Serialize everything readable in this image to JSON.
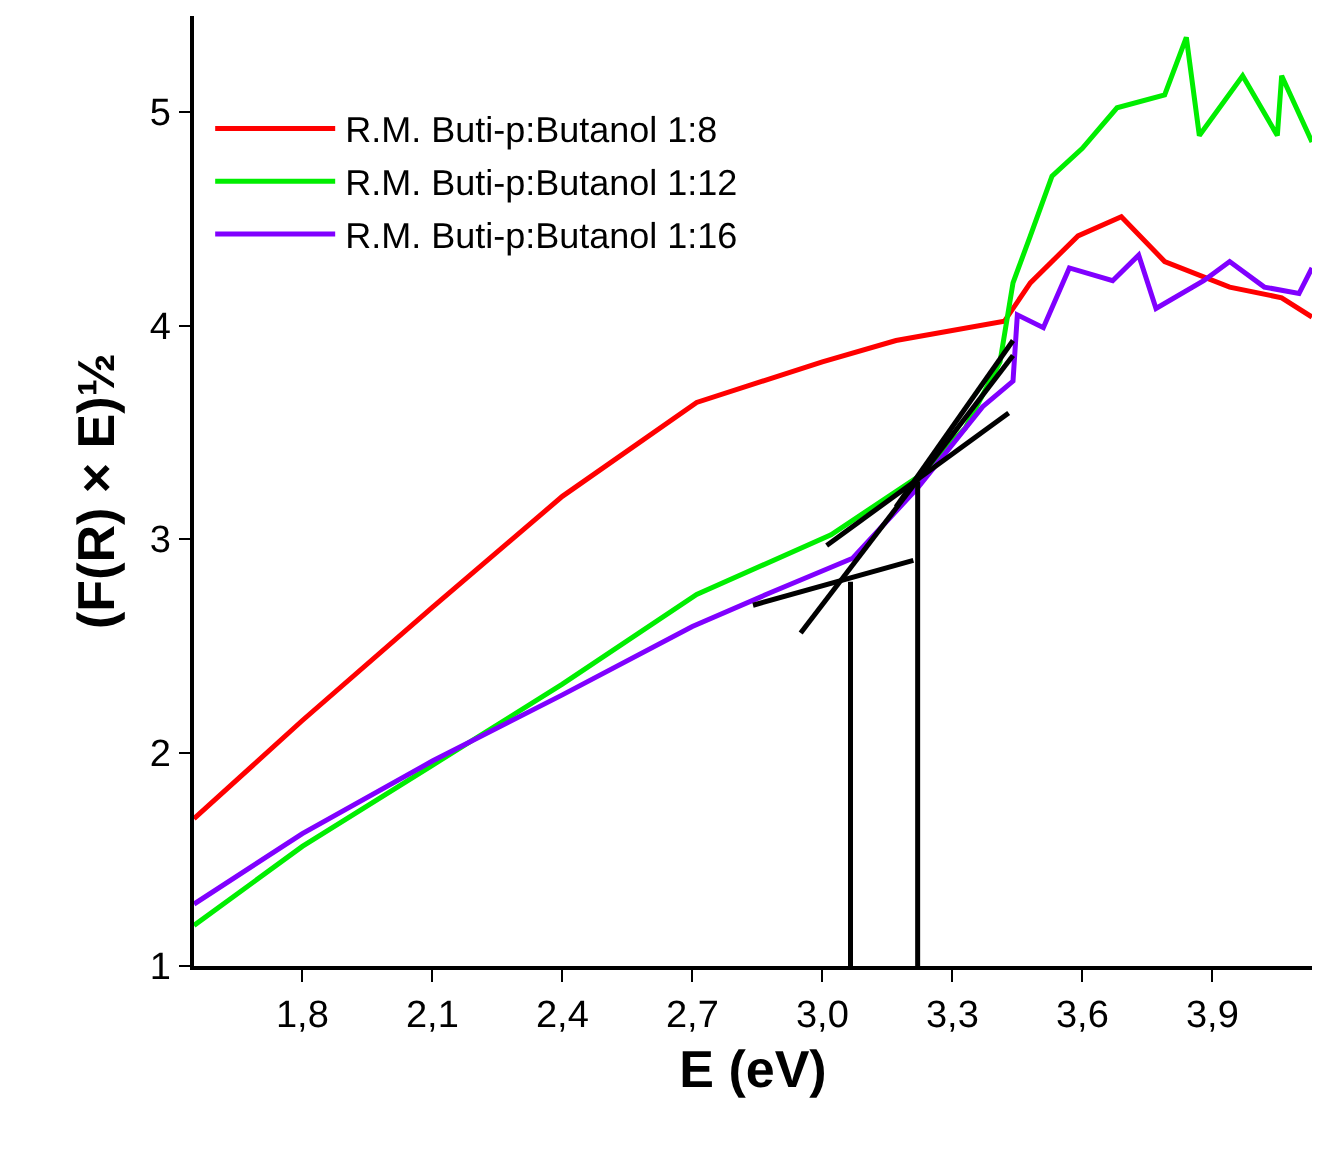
{
  "chart_data": {
    "type": "line",
    "xlabel": "E (eV)",
    "ylabel": "(F(R) × E)½",
    "xlim": [
      1.55,
      4.13
    ],
    "ylim": [
      1,
      5.45
    ],
    "xticks": [
      {
        "value": 1.8,
        "label": "1,8"
      },
      {
        "value": 2.1,
        "label": "2,1"
      },
      {
        "value": 2.4,
        "label": "2,4"
      },
      {
        "value": 2.7,
        "label": "2,7"
      },
      {
        "value": 3.0,
        "label": "3,0"
      },
      {
        "value": 3.3,
        "label": "3,3"
      },
      {
        "value": 3.6,
        "label": "3,6"
      },
      {
        "value": 3.9,
        "label": "3,9"
      }
    ],
    "yticks": [
      1,
      2,
      3,
      4,
      5
    ],
    "legend": "top left",
    "marker": "none",
    "line_style": "solid",
    "series": [
      {
        "name": "R.M. Buti-p:Butanol 1:8",
        "color": "#ff0000",
        "x": [
          1.55,
          1.8,
          2.1,
          2.4,
          2.71,
          3.0,
          3.17,
          3.42,
          3.48,
          3.59,
          3.69,
          3.79,
          3.94,
          4.06,
          4.13
        ],
        "values": [
          1.69,
          2.15,
          2.68,
          3.2,
          3.64,
          3.83,
          3.93,
          4.02,
          4.2,
          4.42,
          4.51,
          4.3,
          4.18,
          4.13,
          4.04
        ]
      },
      {
        "name": "R.M. Buti-p:Butanol 1:12",
        "color": "#00ee00",
        "x": [
          1.55,
          1.8,
          2.1,
          2.4,
          2.71,
          3.02,
          3.22,
          3.33,
          3.41,
          3.44,
          3.48,
          3.53,
          3.6,
          3.68,
          3.79,
          3.84,
          3.87,
          3.97,
          4.05,
          4.06,
          4.13
        ],
        "values": [
          1.19,
          1.56,
          1.94,
          2.32,
          2.74,
          3.02,
          3.29,
          3.52,
          3.83,
          4.2,
          4.42,
          4.7,
          4.83,
          5.02,
          5.08,
          5.35,
          4.89,
          5.17,
          4.89,
          5.17,
          4.86
        ]
      },
      {
        "name": "R.M. Buti-p:Butanol 1:16",
        "color": "#8000ff",
        "x": [
          1.55,
          1.8,
          2.1,
          2.4,
          2.7,
          2.87,
          3.07,
          3.22,
          3.37,
          3.44,
          3.45,
          3.51,
          3.57,
          3.67,
          3.73,
          3.77,
          3.88,
          3.94,
          4.02,
          4.1,
          4.13
        ],
        "values": [
          1.29,
          1.62,
          1.96,
          2.27,
          2.59,
          2.74,
          2.91,
          3.24,
          3.62,
          3.74,
          4.05,
          3.99,
          4.27,
          4.21,
          4.33,
          4.08,
          4.21,
          4.3,
          4.18,
          4.15,
          4.27
        ]
      },
      {
        "color": "#000000",
        "x": [
          2.84,
          3.21
        ],
        "values": [
          2.69,
          2.9
        ]
      },
      {
        "color": "#000000",
        "x": [
          2.95,
          3.44
        ],
        "values": [
          2.56,
          3.86
        ]
      },
      {
        "color": "#000000",
        "x": [
          3.01,
          3.43
        ],
        "values": [
          2.97,
          3.59
        ]
      },
      {
        "color": "#000000",
        "x": [
          3.17,
          3.44
        ],
        "values": [
          3.15,
          3.93
        ]
      },
      {
        "color": "#000000",
        "x": [
          3.065,
          3.065
        ],
        "values": [
          1,
          2.8
        ]
      },
      {
        "color": "#000000",
        "x": [
          3.22,
          3.22
        ],
        "values": [
          1,
          3.27
        ]
      }
    ]
  }
}
